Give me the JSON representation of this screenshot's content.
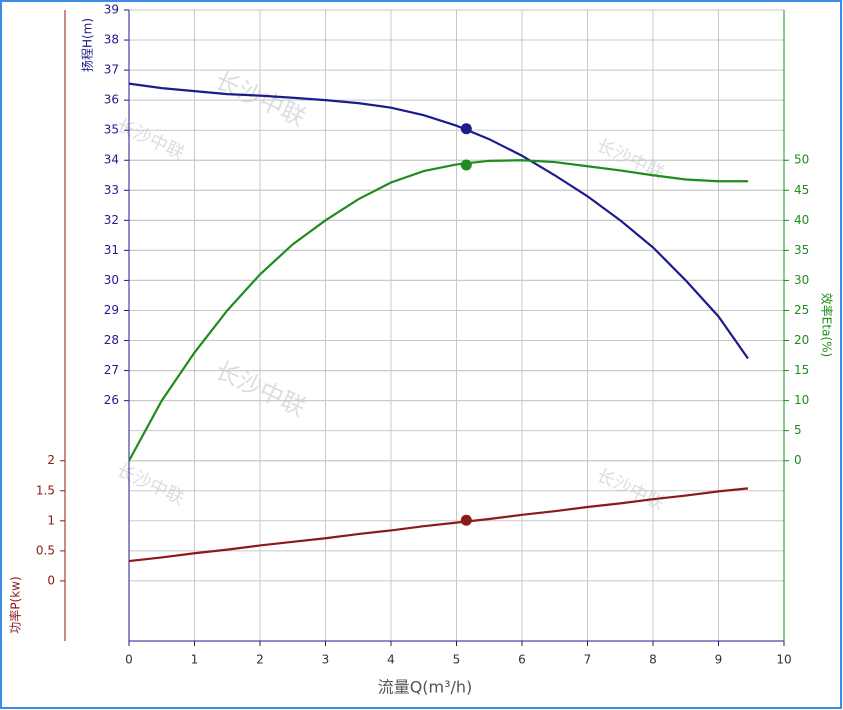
{
  "chart_data": {
    "type": "line",
    "x_label": "流量Q(m³/h)",
    "y_label": "扬程H(m)",
    "y2_label": "效率Eta(%)",
    "y3_label": "功率P(kw)",
    "watermarks": [
      "长沙中联",
      "长沙中联",
      "长沙中联",
      "长沙中联",
      "长沙中联",
      "长沙中联"
    ],
    "x": [
      0,
      0.5,
      1,
      1.5,
      2,
      2.5,
      3,
      3.5,
      4,
      4.5,
      5,
      5.5,
      6,
      6.5,
      7,
      7.5,
      8,
      8.5,
      9,
      9.45
    ],
    "series": [
      {
        "name": "扬程H",
        "color": "#1c1c8c",
        "axis": "y",
        "values": [
          36.55,
          36.4,
          36.3,
          36.2,
          36.15,
          36.08,
          36.0,
          35.9,
          35.75,
          35.5,
          35.15,
          34.7,
          34.15,
          33.5,
          32.8,
          32.0,
          31.1,
          30.0,
          28.8,
          27.4
        ]
      },
      {
        "name": "效率Eta",
        "color": "#1f8c1f",
        "axis": "y2",
        "values": [
          0,
          10,
          18,
          25,
          31,
          36,
          40,
          43.5,
          46.3,
          48.2,
          49.3,
          49.9,
          50,
          49.7,
          49.0,
          48.3,
          47.5,
          46.8,
          46.5,
          46.5
        ]
      },
      {
        "name": "功率P",
        "color": "#8b1a1a",
        "axis": "y3",
        "values": [
          0.33,
          0.39,
          0.46,
          0.52,
          0.59,
          0.65,
          0.71,
          0.78,
          0.84,
          0.91,
          0.97,
          1.03,
          1.1,
          1.16,
          1.23,
          1.29,
          1.36,
          1.42,
          1.49,
          1.54
        ]
      }
    ],
    "operating_point": {
      "x": 5.15,
      "values": [
        35.05,
        49.2,
        1.01
      ]
    },
    "xlim": [
      0,
      10
    ],
    "xticks": [
      0,
      1,
      2,
      3,
      4,
      5,
      6,
      7,
      8,
      9,
      10
    ],
    "ylim": [
      18,
      39
    ],
    "yticks": [
      26,
      27,
      28,
      29,
      30,
      31,
      32,
      33,
      34,
      35,
      36,
      37,
      38,
      39
    ],
    "y2lim": [
      -30,
      75
    ],
    "y2ticks": [
      0,
      5,
      10,
      15,
      20,
      25,
      30,
      35,
      40,
      45,
      50
    ],
    "y3lim": [
      -1,
      9.5
    ],
    "y3ticks": [
      0,
      0.5,
      1,
      1.5,
      2
    ],
    "grid": true
  }
}
